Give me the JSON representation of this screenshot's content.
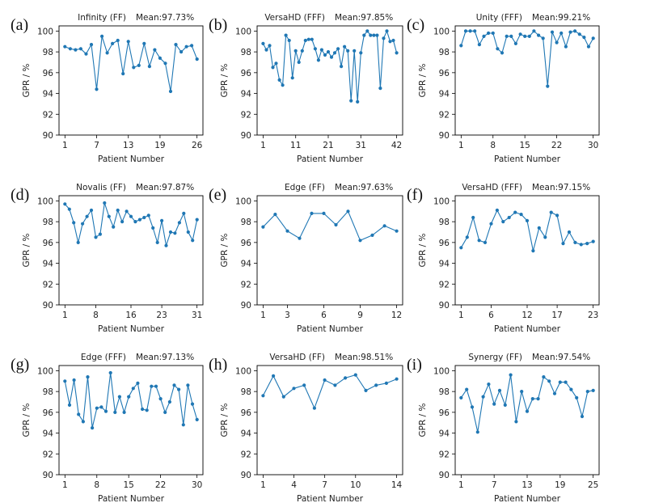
{
  "chart_data": [
    {
      "letter": "(a)",
      "type": "line",
      "title": "Infinity (FF)",
      "mean_label": "Mean:97.73%",
      "xlabel": "Patient Number",
      "ylabel": "GPR / %",
      "ylim": [
        90,
        100.5
      ],
      "yticks": [
        90,
        92,
        94,
        96,
        98,
        100
      ],
      "xticks": [
        1,
        7,
        13,
        19,
        26
      ],
      "color": "#1f77b4",
      "x": [
        1,
        2,
        3,
        4,
        5,
        6,
        7,
        8,
        9,
        10,
        11,
        12,
        13,
        14,
        15,
        16,
        17,
        18,
        19,
        20,
        21,
        22,
        23,
        24,
        25,
        26
      ],
      "values": [
        98.5,
        98.3,
        98.2,
        98.3,
        97.8,
        98.7,
        94.4,
        99.5,
        97.9,
        98.8,
        99.1,
        95.9,
        99.0,
        96.5,
        96.7,
        98.8,
        96.6,
        98.2,
        97.4,
        96.9,
        94.2,
        98.7,
        98.0,
        98.5,
        98.6,
        97.3
      ]
    },
    {
      "letter": "(b)",
      "type": "line",
      "title": "VersaHD (FFF)",
      "mean_label": "Mean:97.85%",
      "xlabel": "Patient Number",
      "ylabel": "GPR / %",
      "ylim": [
        90,
        100.5
      ],
      "yticks": [
        90,
        92,
        94,
        96,
        98,
        100
      ],
      "xticks": [
        1,
        11,
        21,
        31,
        42
      ],
      "color": "#1f77b4",
      "x": [
        1,
        2,
        3,
        4,
        5,
        6,
        7,
        8,
        9,
        10,
        11,
        12,
        13,
        14,
        15,
        16,
        17,
        18,
        19,
        20,
        21,
        22,
        23,
        24,
        25,
        26,
        27,
        28,
        29,
        30,
        31,
        32,
        33,
        34,
        35,
        36,
        37,
        38,
        39,
        40,
        41,
        42
      ],
      "values": [
        98.8,
        98.2,
        98.6,
        96.5,
        96.9,
        95.3,
        94.8,
        99.6,
        99.1,
        95.5,
        98.1,
        97.0,
        98.1,
        99.1,
        99.2,
        99.2,
        98.3,
        97.2,
        98.2,
        97.7,
        98.0,
        97.5,
        97.9,
        98.3,
        96.6,
        98.5,
        98.1,
        93.3,
        98.1,
        93.2,
        97.9,
        99.6,
        100.0,
        99.6,
        99.6,
        99.6,
        94.5,
        99.3,
        100.0,
        99.0,
        99.1,
        97.9
      ]
    },
    {
      "letter": "(c)",
      "type": "line",
      "title": "Unity (FFF)",
      "mean_label": "Mean:99.21%",
      "xlabel": "Patient Number",
      "ylabel": "GPR / %",
      "ylim": [
        90,
        100.5
      ],
      "yticks": [
        90,
        92,
        94,
        96,
        98,
        100
      ],
      "xticks": [
        1,
        8,
        15,
        22,
        30
      ],
      "color": "#1f77b4",
      "x": [
        1,
        2,
        3,
        4,
        5,
        6,
        7,
        8,
        9,
        10,
        11,
        12,
        13,
        14,
        15,
        16,
        17,
        18,
        19,
        20,
        21,
        22,
        23,
        24,
        25,
        26,
        27,
        28,
        29,
        30
      ],
      "values": [
        98.6,
        100.0,
        100.0,
        100.0,
        98.7,
        99.5,
        99.8,
        99.8,
        98.3,
        97.9,
        99.5,
        99.5,
        98.8,
        99.7,
        99.5,
        99.5,
        100.0,
        99.6,
        99.3,
        94.7,
        99.9,
        98.9,
        99.8,
        98.5,
        99.9,
        100.0,
        99.7,
        99.4,
        98.5,
        99.3
      ]
    },
    {
      "letter": "(d)",
      "type": "line",
      "title": "Novalis (FF)",
      "mean_label": "Mean:97.87%",
      "xlabel": "Patient Number",
      "ylabel": "GPR / %",
      "ylim": [
        90,
        100.5
      ],
      "yticks": [
        90,
        92,
        94,
        96,
        98,
        100
      ],
      "xticks": [
        1,
        8,
        16,
        23,
        31
      ],
      "color": "#1f77b4",
      "x": [
        1,
        2,
        3,
        4,
        5,
        6,
        7,
        8,
        9,
        10,
        11,
        12,
        13,
        14,
        15,
        16,
        17,
        18,
        19,
        20,
        21,
        22,
        23,
        24,
        25,
        26,
        27,
        28,
        29,
        30,
        31
      ],
      "values": [
        99.7,
        99.2,
        97.9,
        96.0,
        97.8,
        98.5,
        99.1,
        96.5,
        96.8,
        99.8,
        98.5,
        97.5,
        99.1,
        98.0,
        99.0,
        98.5,
        98.0,
        98.2,
        98.4,
        98.6,
        97.4,
        96.0,
        98.1,
        95.7,
        97.0,
        96.9,
        97.9,
        98.8,
        97.0,
        96.2,
        98.2
      ]
    },
    {
      "letter": "(e)",
      "type": "line",
      "title": "Edge (FF)",
      "mean_label": "Mean:97.63%",
      "xlabel": "Patient Number",
      "ylabel": "GPR / %",
      "ylim": [
        90,
        100.5
      ],
      "yticks": [
        90,
        92,
        94,
        96,
        98,
        100
      ],
      "xticks": [
        1,
        3,
        6,
        9,
        12
      ],
      "color": "#1f77b4",
      "x": [
        1,
        2,
        3,
        4,
        5,
        6,
        7,
        8,
        9,
        10,
        11,
        12
      ],
      "values": [
        97.5,
        98.7,
        97.1,
        96.4,
        98.8,
        98.8,
        97.7,
        99.0,
        96.2,
        96.7,
        97.6,
        97.1
      ]
    },
    {
      "letter": "(f)",
      "type": "line",
      "title": "VersaHD (FFF)",
      "mean_label": "Mean:97.15%",
      "xlabel": "Patient Number",
      "ylabel": "GPR / %",
      "ylim": [
        90,
        100.5
      ],
      "yticks": [
        90,
        92,
        94,
        96,
        98,
        100
      ],
      "xticks": [
        1,
        6,
        12,
        17,
        23
      ],
      "color": "#1f77b4",
      "x": [
        1,
        2,
        3,
        4,
        5,
        6,
        7,
        8,
        9,
        10,
        11,
        12,
        13,
        14,
        15,
        16,
        17,
        18,
        19,
        20,
        21,
        22,
        23
      ],
      "values": [
        95.5,
        96.5,
        98.4,
        96.2,
        96.0,
        97.8,
        99.1,
        98.0,
        98.4,
        98.9,
        98.7,
        98.1,
        95.2,
        97.4,
        96.5,
        98.9,
        98.6,
        95.9,
        97.0,
        96.0,
        95.8,
        95.9,
        96.1
      ]
    },
    {
      "letter": "(g)",
      "type": "line",
      "title": "Edge (FFF)",
      "mean_label": "Mean:97.13%",
      "xlabel": "Patient Number",
      "ylabel": "GPR / %",
      "ylim": [
        90,
        100.5
      ],
      "yticks": [
        90,
        92,
        94,
        96,
        98,
        100
      ],
      "xticks": [
        1,
        8,
        15,
        22,
        30
      ],
      "color": "#1f77b4",
      "x": [
        1,
        2,
        3,
        4,
        5,
        6,
        7,
        8,
        9,
        10,
        11,
        12,
        13,
        14,
        15,
        16,
        17,
        18,
        19,
        20,
        21,
        22,
        23,
        24,
        25,
        26,
        27,
        28,
        29,
        30
      ],
      "values": [
        99.0,
        96.7,
        99.1,
        95.8,
        95.1,
        99.4,
        94.5,
        96.4,
        96.5,
        96.1,
        99.8,
        96.0,
        97.5,
        96.0,
        97.5,
        98.3,
        98.8,
        96.3,
        96.2,
        98.5,
        98.5,
        97.3,
        96.0,
        97.0,
        98.6,
        98.2,
        94.8,
        98.6,
        96.8,
        95.3
      ]
    },
    {
      "letter": "(h)",
      "type": "line",
      "title": "VersaHD (FF)",
      "mean_label": "Mean:98.51%",
      "xlabel": "Patient Number",
      "ylabel": "GPR / %",
      "ylim": [
        90,
        100.5
      ],
      "yticks": [
        90,
        92,
        94,
        96,
        98,
        100
      ],
      "xticks": [
        1,
        4,
        7,
        10,
        14
      ],
      "color": "#1f77b4",
      "x": [
        1,
        2,
        3,
        4,
        5,
        6,
        7,
        8,
        9,
        10,
        11,
        12,
        13,
        14
      ],
      "values": [
        97.6,
        99.5,
        97.5,
        98.3,
        98.6,
        96.4,
        99.1,
        98.6,
        99.3,
        99.6,
        98.1,
        98.6,
        98.8,
        99.2
      ]
    },
    {
      "letter": "(i)",
      "type": "line",
      "title": "Synergy (FF)",
      "mean_label": "Mean:97.54%",
      "xlabel": "Patient Number",
      "ylabel": "GPR / %",
      "ylim": [
        90,
        100.5
      ],
      "yticks": [
        90,
        92,
        94,
        96,
        98,
        100
      ],
      "xticks": [
        1,
        7,
        13,
        19,
        25
      ],
      "color": "#1f77b4",
      "x": [
        1,
        2,
        3,
        4,
        5,
        6,
        7,
        8,
        9,
        10,
        11,
        12,
        13,
        14,
        15,
        16,
        17,
        18,
        19,
        20,
        21,
        22,
        23,
        24,
        25
      ],
      "values": [
        97.4,
        98.2,
        96.5,
        94.1,
        97.5,
        98.7,
        96.8,
        98.1,
        96.7,
        99.6,
        95.1,
        98.0,
        96.1,
        97.3,
        97.3,
        99.4,
        99.0,
        97.8,
        98.9,
        98.9,
        98.2,
        97.4,
        95.6,
        98.0,
        98.1
      ]
    }
  ]
}
